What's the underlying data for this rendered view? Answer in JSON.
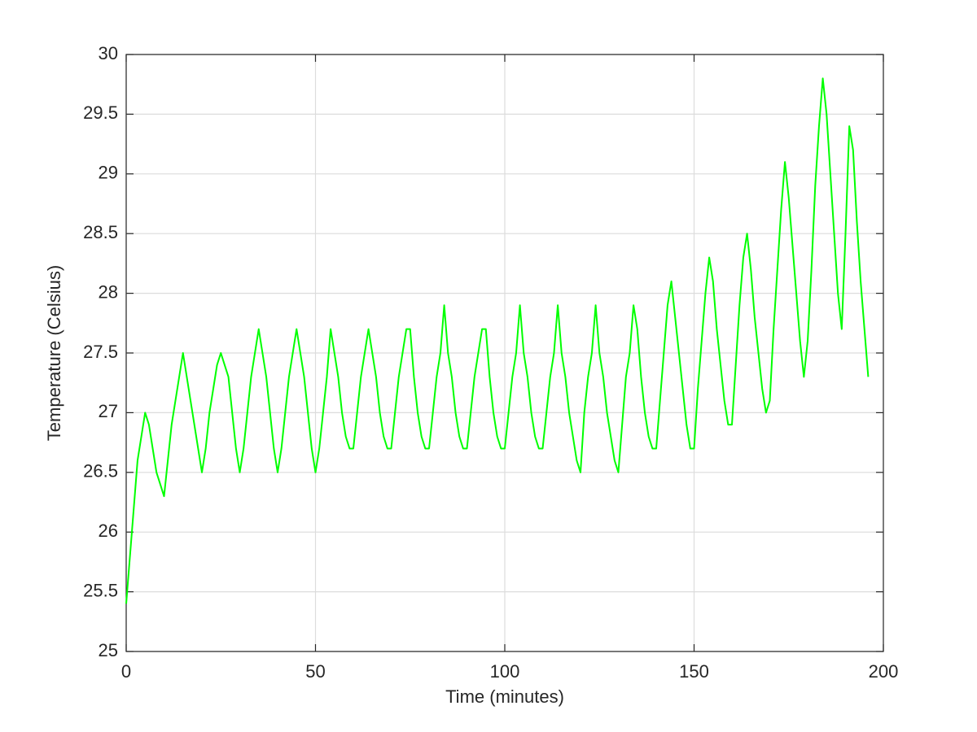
{
  "chart_data": {
    "type": "line",
    "xlabel": "Time (minutes)",
    "ylabel": "Temperature (Celsius)",
    "x": [
      0,
      1,
      2,
      3,
      4,
      5,
      6,
      7,
      8,
      9,
      10,
      11,
      12,
      13,
      14,
      15,
      16,
      17,
      18,
      19,
      20,
      21,
      22,
      23,
      24,
      25,
      26,
      27,
      28,
      29,
      30,
      31,
      32,
      33,
      34,
      35,
      36,
      37,
      38,
      39,
      40,
      41,
      42,
      43,
      44,
      45,
      46,
      47,
      48,
      49,
      50,
      51,
      52,
      53,
      54,
      55,
      56,
      57,
      58,
      59,
      60,
      61,
      62,
      63,
      64,
      65,
      66,
      67,
      68,
      69,
      70,
      71,
      72,
      73,
      74,
      75,
      76,
      77,
      78,
      79,
      80,
      81,
      82,
      83,
      84,
      85,
      86,
      87,
      88,
      89,
      90,
      91,
      92,
      93,
      94,
      95,
      96,
      97,
      98,
      99,
      100,
      101,
      102,
      103,
      104,
      105,
      106,
      107,
      108,
      109,
      110,
      111,
      112,
      113,
      114,
      115,
      116,
      117,
      118,
      119,
      120,
      121,
      122,
      123,
      124,
      125,
      126,
      127,
      128,
      129,
      130,
      131,
      132,
      133,
      134,
      135,
      136,
      137,
      138,
      139,
      140,
      141,
      142,
      143,
      144,
      145,
      146,
      147,
      148,
      149,
      150,
      151,
      152,
      153,
      154,
      155,
      156,
      157,
      158,
      159,
      160,
      161,
      162,
      163,
      164,
      165,
      166,
      167,
      168,
      169,
      170,
      171,
      172,
      173,
      174,
      175,
      176,
      177,
      178,
      179,
      180,
      181,
      182,
      183,
      184,
      185,
      186,
      187,
      188,
      189,
      190,
      191,
      192,
      193,
      194,
      195,
      196
    ],
    "values": [
      25.4,
      25.8,
      26.2,
      26.6,
      26.8,
      27.0,
      26.9,
      26.7,
      26.5,
      26.4,
      26.3,
      26.6,
      26.9,
      27.1,
      27.3,
      27.5,
      27.3,
      27.1,
      26.9,
      26.7,
      26.5,
      26.7,
      27.0,
      27.2,
      27.4,
      27.5,
      27.4,
      27.3,
      27.0,
      26.7,
      26.5,
      26.7,
      27.0,
      27.3,
      27.5,
      27.7,
      27.5,
      27.3,
      27.0,
      26.7,
      26.5,
      26.7,
      27.0,
      27.3,
      27.5,
      27.7,
      27.5,
      27.3,
      27.0,
      26.7,
      26.5,
      26.7,
      27.0,
      27.3,
      27.7,
      27.5,
      27.3,
      27.0,
      26.8,
      26.7,
      26.7,
      27.0,
      27.3,
      27.5,
      27.7,
      27.5,
      27.3,
      27.0,
      26.8,
      26.7,
      26.7,
      27.0,
      27.3,
      27.5,
      27.7,
      27.7,
      27.3,
      27.0,
      26.8,
      26.7,
      26.7,
      27.0,
      27.3,
      27.5,
      27.9,
      27.5,
      27.3,
      27.0,
      26.8,
      26.7,
      26.7,
      27.0,
      27.3,
      27.5,
      27.7,
      27.7,
      27.3,
      27.0,
      26.8,
      26.7,
      26.7,
      27.0,
      27.3,
      27.5,
      27.9,
      27.5,
      27.3,
      27.0,
      26.8,
      26.7,
      26.7,
      27.0,
      27.3,
      27.5,
      27.9,
      27.5,
      27.3,
      27.0,
      26.8,
      26.6,
      26.5,
      27.0,
      27.3,
      27.5,
      27.9,
      27.5,
      27.3,
      27.0,
      26.8,
      26.6,
      26.5,
      26.9,
      27.3,
      27.5,
      27.9,
      27.7,
      27.3,
      27.0,
      26.8,
      26.7,
      26.7,
      27.1,
      27.5,
      27.9,
      28.1,
      27.8,
      27.5,
      27.2,
      26.9,
      26.7,
      26.7,
      27.2,
      27.6,
      28.0,
      28.3,
      28.1,
      27.7,
      27.4,
      27.1,
      26.9,
      26.9,
      27.4,
      27.9,
      28.3,
      28.5,
      28.2,
      27.8,
      27.5,
      27.2,
      27.0,
      27.1,
      27.7,
      28.2,
      28.7,
      29.1,
      28.8,
      28.4,
      28.0,
      27.6,
      27.3,
      27.6,
      28.2,
      28.9,
      29.4,
      29.8,
      29.5,
      29.0,
      28.5,
      28.0,
      27.7,
      28.5,
      29.4,
      29.2,
      28.6,
      28.1,
      27.7,
      27.3
    ],
    "color": "#00ff00",
    "xlim": [
      0,
      200
    ],
    "xticks": [
      0,
      50,
      100,
      150,
      200
    ],
    "ylim": [
      25,
      30
    ],
    "yticks": [
      25,
      25.5,
      26,
      26.5,
      27,
      27.5,
      28,
      28.5,
      29,
      29.5,
      30
    ],
    "grid": true
  }
}
